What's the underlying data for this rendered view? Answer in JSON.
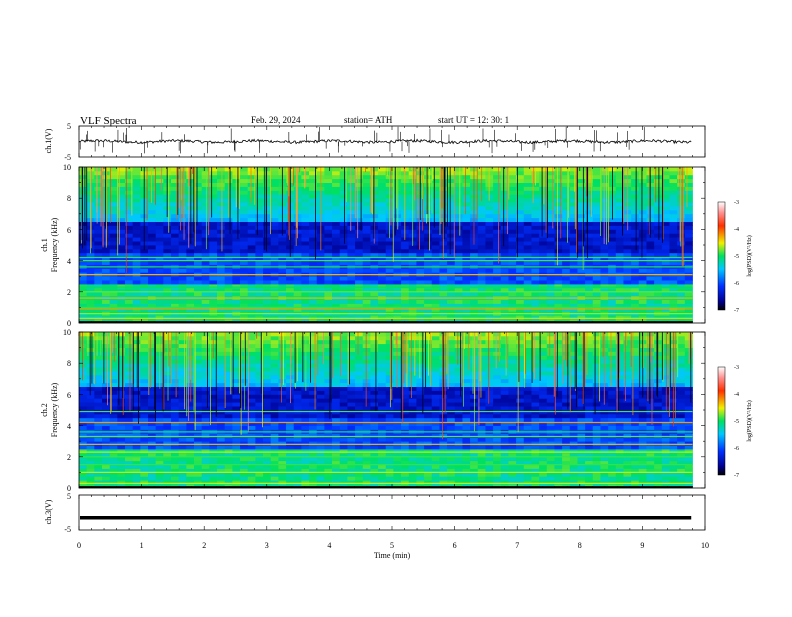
{
  "header": {
    "title": "VLF  Spectra",
    "date": "Feb. 29, 2024",
    "station": "station= ATH",
    "start_ut": "start  UT  =    12: 30: 1"
  },
  "chart_data": [
    {
      "type": "line",
      "panel": "ch1-waveform",
      "ylabel": "ch.1(V)",
      "ylim": [
        -5,
        5
      ],
      "yticks": [
        "5",
        "-5"
      ],
      "xlim": [
        0,
        10
      ],
      "trace_color": "#000000",
      "baseline_value": 0,
      "spike_range": [
        -4,
        5
      ]
    },
    {
      "type": "heatmap",
      "panel": "ch1-spectrogram",
      "ylabel": "ch.1 Frequency  (kHz)",
      "ylabel_top": "ch.1",
      "ylabel_bottom": "Frequency  (kHz)",
      "ylim": [
        0,
        10
      ],
      "yticks": [
        "0",
        "2",
        "4",
        "6",
        "8",
        "10"
      ],
      "xlim": [
        0,
        9.8
      ],
      "bands_khz": [
        0.3,
        0.6,
        0.9,
        1.0,
        1.6,
        2.0,
        2.3,
        3.1,
        3.6,
        4.0,
        4.2
      ],
      "colorbar": {
        "label": "log(PSD)(V²/Hz)",
        "range": [
          -7,
          -3
        ],
        "ticks": [
          "-3",
          "-4",
          "-5",
          "-6",
          "-7"
        ]
      }
    },
    {
      "type": "heatmap",
      "panel": "ch2-spectrogram",
      "ylabel": "ch.2 Frequency  (kHz)",
      "ylabel_top": "ch.2",
      "ylabel_bottom": "Frequency  (kHz)",
      "ylim": [
        0,
        10
      ],
      "yticks": [
        "0",
        "2",
        "4",
        "6",
        "8",
        "10"
      ],
      "xlim": [
        0,
        9.8
      ],
      "bands_khz": [
        0.3,
        1.0,
        1.5,
        2.0,
        2.3,
        2.8,
        3.3,
        3.6,
        4.2,
        4.9
      ],
      "colorbar": {
        "label": "log(PSD)(V²/Hz)",
        "range": [
          -7,
          -3
        ],
        "ticks": [
          "-3",
          "-4",
          "-5",
          "-6",
          "-7"
        ]
      }
    },
    {
      "type": "line",
      "panel": "ch3-waveform",
      "ylabel": "ch.3(V)",
      "ylim": [
        -5,
        5
      ],
      "yticks": [
        "5",
        "-5"
      ],
      "xlim": [
        0,
        10
      ],
      "trace_color": "#000000",
      "baseline_value": -1.5
    }
  ],
  "x_axis": {
    "label": "Time  (min)",
    "ticks": [
      "0",
      "1",
      "2",
      "3",
      "4",
      "5",
      "6",
      "7",
      "8",
      "9",
      "10"
    ]
  }
}
